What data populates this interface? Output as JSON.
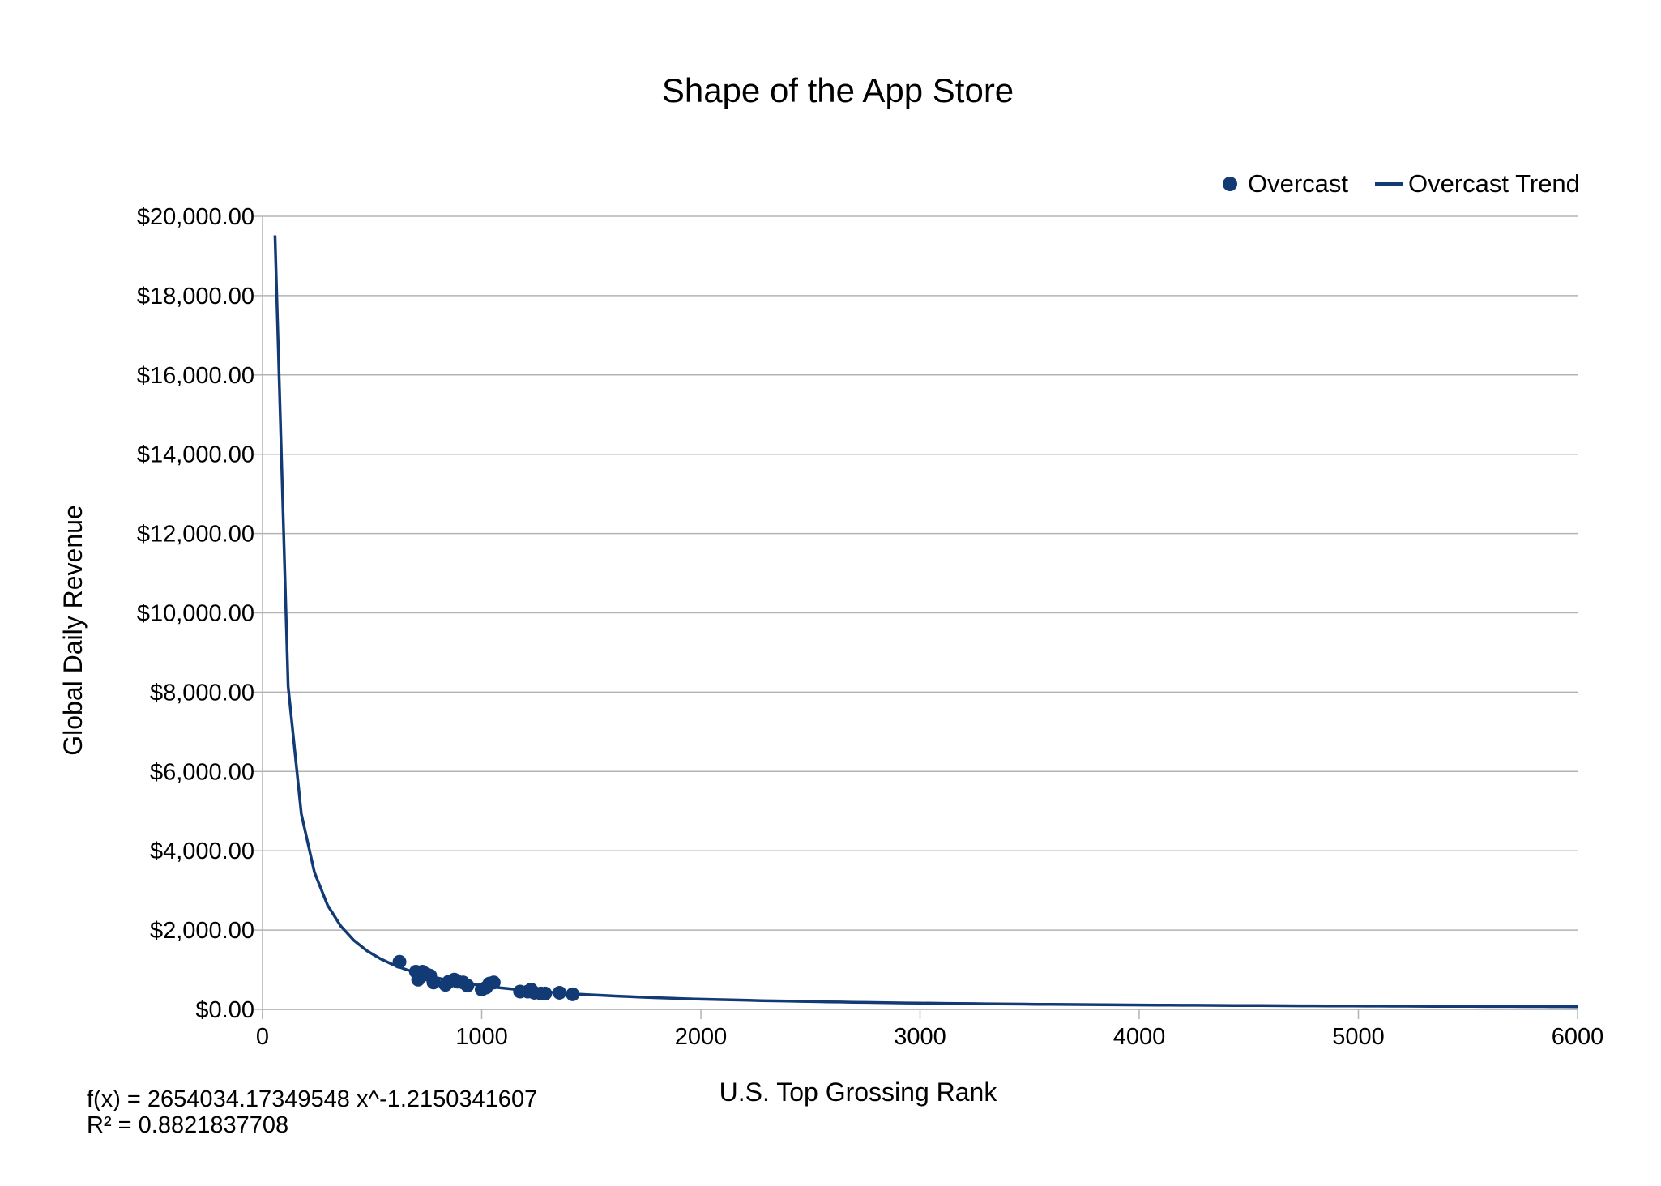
{
  "chart_data": {
    "type": "scatter",
    "title": "Shape of the App Store",
    "xlabel": "U.S. Top Grossing Rank",
    "ylabel": "Global Daily Revenue",
    "xlim": [
      0,
      6000
    ],
    "ylim": [
      0,
      20000
    ],
    "x_ticks": [
      0,
      1000,
      2000,
      3000,
      4000,
      5000,
      6000
    ],
    "x_tick_labels": [
      "0",
      "1000",
      "2000",
      "3000",
      "4000",
      "5000",
      "6000"
    ],
    "y_ticks": [
      0,
      2000,
      4000,
      6000,
      8000,
      10000,
      12000,
      14000,
      16000,
      18000,
      20000
    ],
    "y_tick_labels": [
      "$0.00",
      "$2,000.00",
      "$4,000.00",
      "$6,000.00",
      "$8,000.00",
      "$10,000.00",
      "$12,000.00",
      "$14,000.00",
      "$16,000.00",
      "$18,000.00",
      "$20,000.00"
    ],
    "grid": "horizontal",
    "legend_position": "top-right",
    "series": [
      {
        "name": "Overcast",
        "kind": "points",
        "color": "#123a75",
        "points": [
          {
            "x": 625,
            "y": 1200
          },
          {
            "x": 700,
            "y": 950
          },
          {
            "x": 710,
            "y": 750
          },
          {
            "x": 730,
            "y": 950
          },
          {
            "x": 750,
            "y": 880
          },
          {
            "x": 765,
            "y": 850
          },
          {
            "x": 780,
            "y": 680
          },
          {
            "x": 835,
            "y": 620
          },
          {
            "x": 850,
            "y": 700
          },
          {
            "x": 875,
            "y": 750
          },
          {
            "x": 890,
            "y": 700
          },
          {
            "x": 915,
            "y": 680
          },
          {
            "x": 935,
            "y": 600
          },
          {
            "x": 1000,
            "y": 500
          },
          {
            "x": 1020,
            "y": 550
          },
          {
            "x": 1035,
            "y": 650
          },
          {
            "x": 1055,
            "y": 680
          },
          {
            "x": 1175,
            "y": 450
          },
          {
            "x": 1210,
            "y": 450
          },
          {
            "x": 1225,
            "y": 500
          },
          {
            "x": 1240,
            "y": 420
          },
          {
            "x": 1270,
            "y": 400
          },
          {
            "x": 1290,
            "y": 400
          },
          {
            "x": 1355,
            "y": 420
          },
          {
            "x": 1415,
            "y": 380
          }
        ]
      },
      {
        "name": "Overcast Trend",
        "kind": "power-trend",
        "color": "#123a75",
        "coefficient": 2654034.17349548,
        "exponent": -1.2150341607,
        "x_start": 57,
        "x_end": 6000
      }
    ],
    "annotations": {
      "equation": "f(x) = 2654034.17349548 x^-1.2150341607",
      "r_squared": "R² = 0.8821837708"
    }
  }
}
